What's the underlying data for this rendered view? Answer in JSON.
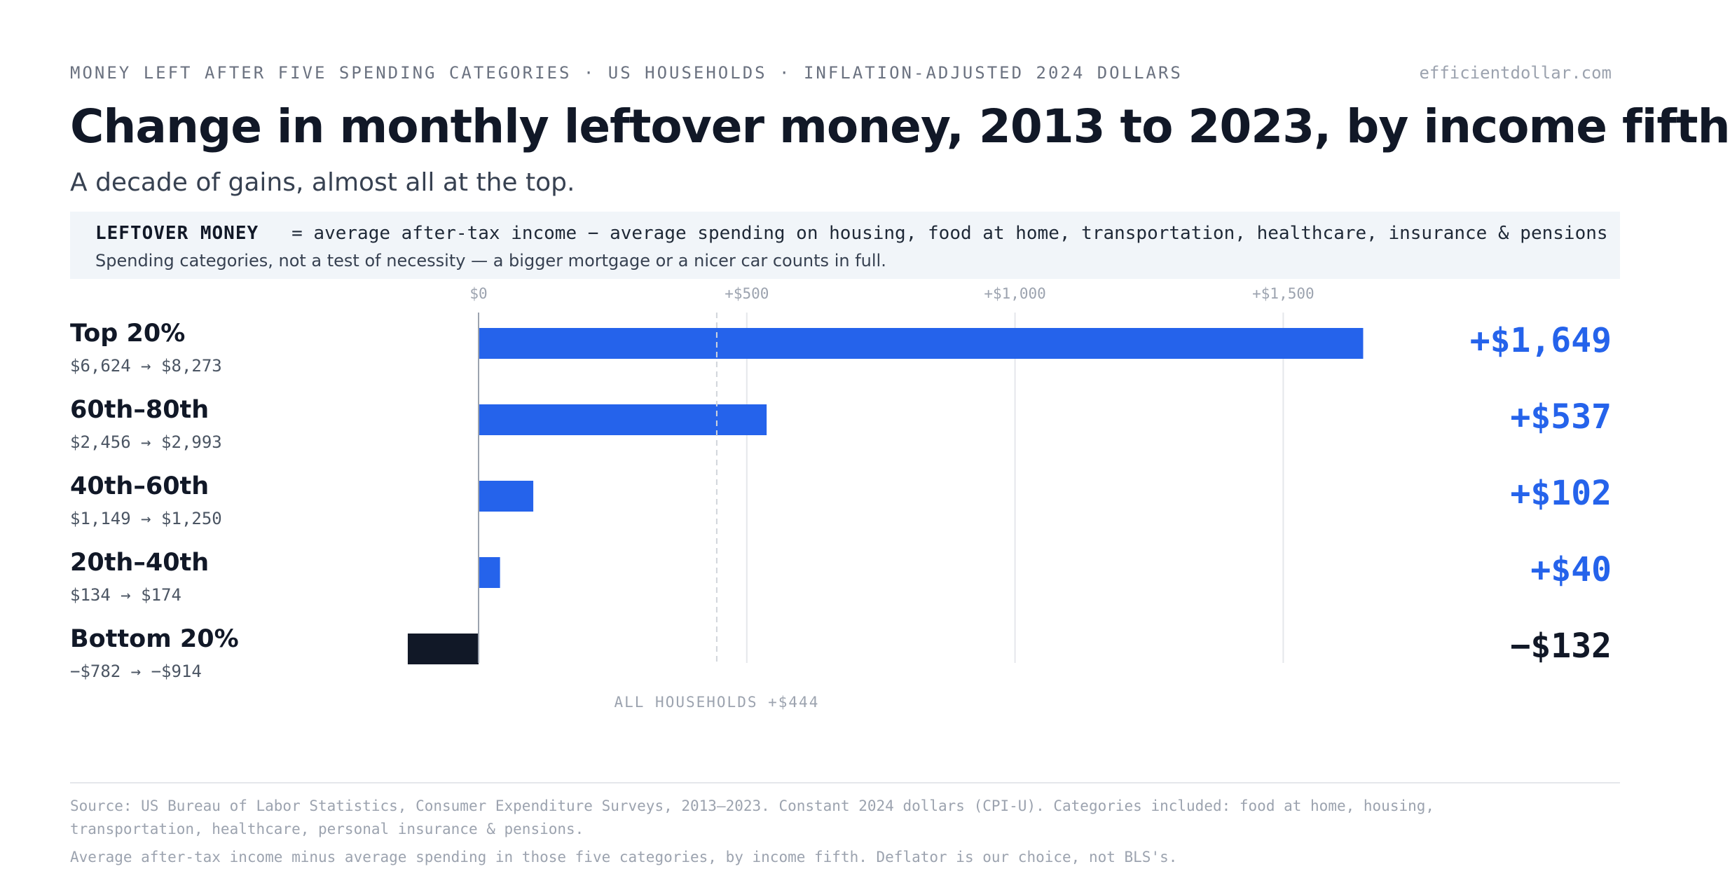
{
  "header": {
    "kicker": "MONEY LEFT AFTER FIVE SPENDING CATEGORIES · US HOUSEHOLDS · INFLATION-ADJUSTED 2024 DOLLARS",
    "site": "efficientdollar.com",
    "title": "Change in monthly leftover money, 2013 to 2023, by income fifth",
    "subtitle": "A decade of gains, almost all at the top."
  },
  "definition": {
    "term": "LEFTOVER MONEY",
    "formula": "= average after-tax income − average spending on housing, food at home, transportation, healthcare, insurance & pensions",
    "note": "Spending categories, not a test of necessity — a bigger mortgage or a nicer car counts in full."
  },
  "chart_data": {
    "type": "bar",
    "orientation": "horizontal",
    "categories": [
      "Top 20%",
      "60th–80th",
      "40th–60th",
      "20th–40th",
      "Bottom 20%"
    ],
    "values": [
      1649,
      537,
      102,
      40,
      -132
    ],
    "value_labels": [
      "+$1,649",
      "+$537",
      "+$102",
      "+$40",
      "−$132"
    ],
    "ranges": [
      "$6,624 → $8,273",
      "$2,456 → $2,993",
      "$1,149 → $1,250",
      "$134 → $174",
      "−$782 → −$914"
    ],
    "xlim": [
      -160,
      1700
    ],
    "ticks": [
      0,
      500,
      1000,
      1500
    ],
    "tick_labels": [
      "$0",
      "+$500",
      "+$1,000",
      "+$1,500"
    ],
    "reference": {
      "value": 444,
      "label": "ALL HOUSEHOLDS +$444"
    },
    "colors": {
      "positive": "#2563eb",
      "negative": "#111827",
      "grid": "#e5e7eb",
      "axis": "#9ca3af"
    }
  },
  "footer": {
    "source": "Source: US Bureau of Labor Statistics, Consumer Expenditure Surveys, 2013–2023. Constant 2024 dollars (CPI-U). Categories included: food at home, housing, transportation, healthcare, personal insurance & pensions.",
    "method": "Average after-tax income minus average spending in those five categories, by income fifth. Deflator is our choice, not BLS's."
  }
}
